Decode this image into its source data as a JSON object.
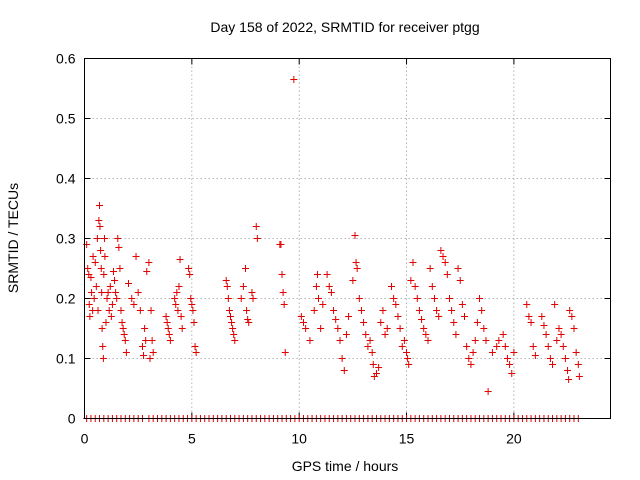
{
  "chart_data": {
    "type": "scatter",
    "title": "Day 158 of 2022, SRMTID for receiver ptgg",
    "xlabel": "GPS time / hours",
    "ylabel": "SRMTID / TECUs",
    "xlim": [
      0,
      24.5
    ],
    "ylim": [
      0,
      0.6
    ],
    "xticks": [
      0,
      5,
      10,
      15,
      20
    ],
    "xtick_labels": [
      "0",
      "5",
      "10",
      "15",
      "20"
    ],
    "yticks": [
      0,
      0.1,
      0.2,
      0.3,
      0.4,
      0.5,
      0.6
    ],
    "ytick_labels": [
      "0",
      "0.1",
      "0.2",
      "0.3",
      "0.4",
      "0.5",
      "0.6"
    ],
    "grid": true,
    "marker": "plus",
    "color": "#e00000",
    "series": [
      {
        "name": "SRMTID",
        "points": [
          [
            0.1,
            0.29
          ],
          [
            0.15,
            0.25
          ],
          [
            0.2,
            0.24
          ],
          [
            0.22,
            0.19
          ],
          [
            0.25,
            0.17
          ],
          [
            0.3,
            0.235
          ],
          [
            0.33,
            0.21
          ],
          [
            0.38,
            0.18
          ],
          [
            0.4,
            0.27
          ],
          [
            0.45,
            0.2
          ],
          [
            0.5,
            0.26
          ],
          [
            0.55,
            0.22
          ],
          [
            0.6,
            0.3
          ],
          [
            0.63,
            0.18
          ],
          [
            0.67,
            0.33
          ],
          [
            0.7,
            0.355
          ],
          [
            0.72,
            0.32
          ],
          [
            0.75,
            0.28
          ],
          [
            0.78,
            0.25
          ],
          [
            0.8,
            0.21
          ],
          [
            0.82,
            0.15
          ],
          [
            0.85,
            0.12
          ],
          [
            0.88,
            0.1
          ],
          [
            0.9,
            0.24
          ],
          [
            0.93,
            0.3
          ],
          [
            0.95,
            0.27
          ],
          [
            1.0,
            0.16
          ],
          [
            1.05,
            0.2
          ],
          [
            1.1,
            0.21
          ],
          [
            1.15,
            0.18
          ],
          [
            1.2,
            0.22
          ],
          [
            1.25,
            0.17
          ],
          [
            1.3,
            0.19
          ],
          [
            1.35,
            0.245
          ],
          [
            1.4,
            0.23
          ],
          [
            1.45,
            0.21
          ],
          [
            1.5,
            0.2
          ],
          [
            1.55,
            0.3
          ],
          [
            1.6,
            0.285
          ],
          [
            1.65,
            0.25
          ],
          [
            1.7,
            0.18
          ],
          [
            1.75,
            0.16
          ],
          [
            1.8,
            0.15
          ],
          [
            1.85,
            0.14
          ],
          [
            1.9,
            0.13
          ],
          [
            1.95,
            0.11
          ],
          [
            2.05,
            0.225
          ],
          [
            2.2,
            0.2
          ],
          [
            2.3,
            0.19
          ],
          [
            2.4,
            0.27
          ],
          [
            2.5,
            0.21
          ],
          [
            2.6,
            0.18
          ],
          [
            2.7,
            0.12
          ],
          [
            2.75,
            0.105
          ],
          [
            2.8,
            0.15
          ],
          [
            2.85,
            0.13
          ],
          [
            2.9,
            0.245
          ],
          [
            3.0,
            0.26
          ],
          [
            3.05,
            0.1
          ],
          [
            3.1,
            0.18
          ],
          [
            3.15,
            0.13
          ],
          [
            3.2,
            0.11
          ],
          [
            3.8,
            0.17
          ],
          [
            3.85,
            0.16
          ],
          [
            3.9,
            0.15
          ],
          [
            3.95,
            0.14
          ],
          [
            4.0,
            0.13
          ],
          [
            4.2,
            0.2
          ],
          [
            4.25,
            0.19
          ],
          [
            4.3,
            0.21
          ],
          [
            4.35,
            0.18
          ],
          [
            4.4,
            0.22
          ],
          [
            4.45,
            0.265
          ],
          [
            4.5,
            0.17
          ],
          [
            4.55,
            0.15
          ],
          [
            4.85,
            0.25
          ],
          [
            4.9,
            0.24
          ],
          [
            4.95,
            0.2
          ],
          [
            5.0,
            0.19
          ],
          [
            5.05,
            0.18
          ],
          [
            5.1,
            0.16
          ],
          [
            5.15,
            0.12
          ],
          [
            5.2,
            0.11
          ],
          [
            6.6,
            0.23
          ],
          [
            6.65,
            0.22
          ],
          [
            6.7,
            0.2
          ],
          [
            6.75,
            0.18
          ],
          [
            6.8,
            0.17
          ],
          [
            6.85,
            0.16
          ],
          [
            6.9,
            0.15
          ],
          [
            6.95,
            0.14
          ],
          [
            7.0,
            0.13
          ],
          [
            7.3,
            0.2
          ],
          [
            7.4,
            0.22
          ],
          [
            7.5,
            0.25
          ],
          [
            7.55,
            0.18
          ],
          [
            7.6,
            0.165
          ],
          [
            7.65,
            0.16
          ],
          [
            7.8,
            0.21
          ],
          [
            7.85,
            0.2
          ],
          [
            8.0,
            0.32
          ],
          [
            8.05,
            0.3
          ],
          [
            9.1,
            0.29
          ],
          [
            9.15,
            0.29
          ],
          [
            9.2,
            0.24
          ],
          [
            9.25,
            0.21
          ],
          [
            9.3,
            0.19
          ],
          [
            9.35,
            0.11
          ],
          [
            9.75,
            0.565
          ],
          [
            10.1,
            0.17
          ],
          [
            10.2,
            0.16
          ],
          [
            10.3,
            0.15
          ],
          [
            10.5,
            0.13
          ],
          [
            10.7,
            0.18
          ],
          [
            10.8,
            0.22
          ],
          [
            10.85,
            0.24
          ],
          [
            10.9,
            0.2
          ],
          [
            11.0,
            0.15
          ],
          [
            11.1,
            0.19
          ],
          [
            11.3,
            0.24
          ],
          [
            11.4,
            0.22
          ],
          [
            11.5,
            0.21
          ],
          [
            11.6,
            0.18
          ],
          [
            11.7,
            0.165
          ],
          [
            11.8,
            0.15
          ],
          [
            11.9,
            0.13
          ],
          [
            12.0,
            0.1
          ],
          [
            12.1,
            0.08
          ],
          [
            12.2,
            0.14
          ],
          [
            12.3,
            0.17
          ],
          [
            12.5,
            0.23
          ],
          [
            12.6,
            0.305
          ],
          [
            12.65,
            0.26
          ],
          [
            12.7,
            0.25
          ],
          [
            12.8,
            0.2
          ],
          [
            12.9,
            0.18
          ],
          [
            13.0,
            0.16
          ],
          [
            13.1,
            0.14
          ],
          [
            13.2,
            0.12
          ],
          [
            13.3,
            0.13
          ],
          [
            13.4,
            0.11
          ],
          [
            13.45,
            0.09
          ],
          [
            13.5,
            0.07
          ],
          [
            13.6,
            0.075
          ],
          [
            13.7,
            0.085
          ],
          [
            13.8,
            0.16
          ],
          [
            13.9,
            0.18
          ],
          [
            14.0,
            0.14
          ],
          [
            14.1,
            0.15
          ],
          [
            14.3,
            0.22
          ],
          [
            14.4,
            0.2
          ],
          [
            14.5,
            0.19
          ],
          [
            14.6,
            0.17
          ],
          [
            14.7,
            0.15
          ],
          [
            14.8,
            0.12
          ],
          [
            14.9,
            0.13
          ],
          [
            15.0,
            0.11
          ],
          [
            15.05,
            0.1
          ],
          [
            15.1,
            0.09
          ],
          [
            15.2,
            0.23
          ],
          [
            15.3,
            0.26
          ],
          [
            15.4,
            0.22
          ],
          [
            15.5,
            0.2
          ],
          [
            15.6,
            0.18
          ],
          [
            15.7,
            0.165
          ],
          [
            15.8,
            0.15
          ],
          [
            15.9,
            0.14
          ],
          [
            16.0,
            0.13
          ],
          [
            16.1,
            0.25
          ],
          [
            16.2,
            0.22
          ],
          [
            16.3,
            0.2
          ],
          [
            16.4,
            0.18
          ],
          [
            16.5,
            0.17
          ],
          [
            16.6,
            0.28
          ],
          [
            16.7,
            0.27
          ],
          [
            16.8,
            0.26
          ],
          [
            16.9,
            0.24
          ],
          [
            17.0,
            0.2
          ],
          [
            17.1,
            0.18
          ],
          [
            17.2,
            0.16
          ],
          [
            17.3,
            0.14
          ],
          [
            17.4,
            0.25
          ],
          [
            17.5,
            0.23
          ],
          [
            17.6,
            0.19
          ],
          [
            17.7,
            0.17
          ],
          [
            17.8,
            0.12
          ],
          [
            17.9,
            0.1
          ],
          [
            18.0,
            0.09
          ],
          [
            18.1,
            0.11
          ],
          [
            18.2,
            0.13
          ],
          [
            18.3,
            0.16
          ],
          [
            18.4,
            0.2
          ],
          [
            18.5,
            0.18
          ],
          [
            18.6,
            0.15
          ],
          [
            18.7,
            0.13
          ],
          [
            18.8,
            0.045
          ],
          [
            19.0,
            0.11
          ],
          [
            19.2,
            0.12
          ],
          [
            19.3,
            0.13
          ],
          [
            19.5,
            0.14
          ],
          [
            19.6,
            0.12
          ],
          [
            19.7,
            0.1
          ],
          [
            19.8,
            0.09
          ],
          [
            19.9,
            0.075
          ],
          [
            20.0,
            0.11
          ],
          [
            20.6,
            0.19
          ],
          [
            20.7,
            0.17
          ],
          [
            20.8,
            0.16
          ],
          [
            20.9,
            0.12
          ],
          [
            21.0,
            0.105
          ],
          [
            21.3,
            0.17
          ],
          [
            21.4,
            0.155
          ],
          [
            21.5,
            0.14
          ],
          [
            21.6,
            0.12
          ],
          [
            21.7,
            0.1
          ],
          [
            21.8,
            0.09
          ],
          [
            21.9,
            0.19
          ],
          [
            22.0,
            0.13
          ],
          [
            22.1,
            0.15
          ],
          [
            22.2,
            0.14
          ],
          [
            22.3,
            0.12
          ],
          [
            22.4,
            0.1
          ],
          [
            22.5,
            0.08
          ],
          [
            22.55,
            0.065
          ],
          [
            22.6,
            0.18
          ],
          [
            22.7,
            0.17
          ],
          [
            22.8,
            0.15
          ],
          [
            22.9,
            0.11
          ],
          [
            23.0,
            0.09
          ],
          [
            23.05,
            0.07
          ]
        ],
        "zero_x": [
          0.1,
          0.3,
          0.5,
          0.7,
          0.9,
          1.1,
          1.3,
          1.5,
          1.7,
          1.9,
          2.1,
          2.3,
          2.5,
          2.7,
          3.0,
          3.2,
          3.4,
          3.6,
          3.8,
          4.0,
          4.2,
          4.4,
          4.6,
          4.8,
          5.0,
          5.2,
          5.4,
          5.6,
          5.8,
          6.0,
          6.2,
          6.4,
          6.6,
          6.8,
          7.0,
          7.2,
          7.4,
          7.6,
          7.8,
          8.0,
          8.2,
          8.4,
          8.6,
          8.8,
          9.0,
          9.2,
          9.4,
          9.6,
          9.8,
          10.0,
          10.2,
          10.4,
          10.6,
          10.8,
          11.0,
          11.2,
          11.4,
          11.6,
          11.8,
          12.0,
          12.2,
          12.4,
          12.6,
          12.8,
          13.0,
          13.2,
          13.4,
          13.6,
          13.8,
          14.0,
          14.2,
          14.4,
          14.6,
          14.8,
          15.0,
          15.2,
          15.4,
          15.6,
          15.8,
          16.0,
          16.2,
          16.4,
          16.6,
          16.8,
          17.0,
          17.2,
          17.4,
          17.6,
          17.8,
          18.0,
          18.2,
          18.4,
          18.6,
          18.8,
          19.0,
          19.2,
          19.4,
          19.6,
          19.8,
          20.0,
          20.2,
          20.4,
          20.6,
          20.8,
          21.0,
          21.2,
          21.4,
          21.6,
          21.8,
          22.0,
          22.2,
          22.4,
          22.6,
          22.8,
          23.0
        ]
      }
    ]
  }
}
